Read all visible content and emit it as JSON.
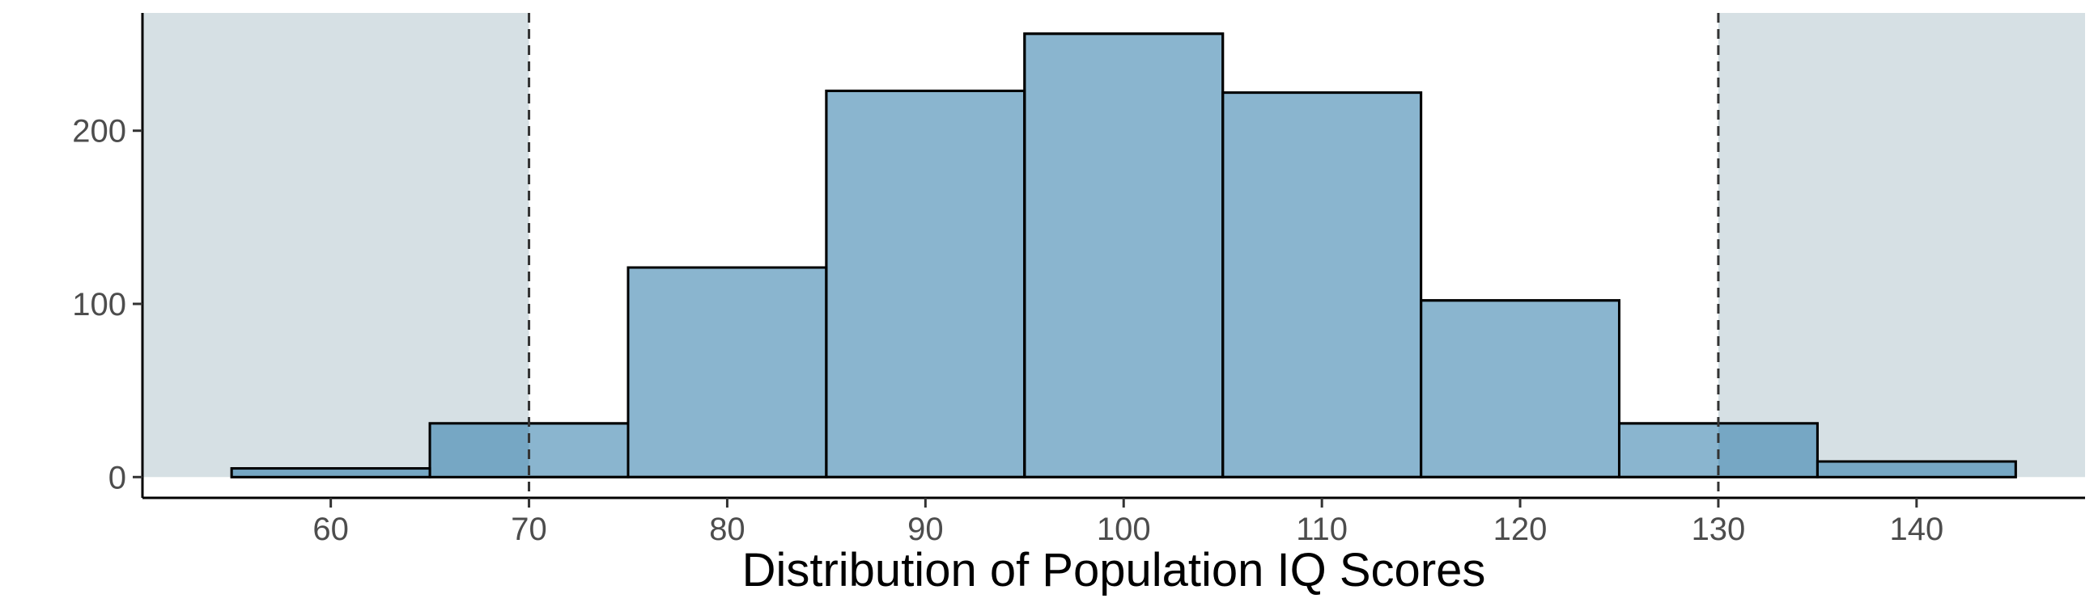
{
  "chart_data": {
    "type": "histogram",
    "title": "",
    "xlabel": "Distribution of Population IQ Scores",
    "ylabel": "",
    "bins": [
      {
        "x0": 55,
        "x1": 65,
        "count": 5
      },
      {
        "x0": 65,
        "x1": 75,
        "count": 31
      },
      {
        "x0": 75,
        "x1": 85,
        "count": 121
      },
      {
        "x0": 85,
        "x1": 95,
        "count": 223
      },
      {
        "x0": 95,
        "x1": 105,
        "count": 256
      },
      {
        "x0": 105,
        "x1": 115,
        "count": 222
      },
      {
        "x0": 115,
        "x1": 125,
        "count": 102
      },
      {
        "x0": 125,
        "x1": 135,
        "count": 31
      },
      {
        "x0": 135,
        "x1": 145,
        "count": 9
      }
    ],
    "xlim": [
      50.5,
      148.5
    ],
    "ylim": [
      -12,
      268
    ],
    "xticks": [
      60,
      70,
      80,
      90,
      100,
      110,
      120,
      130,
      140
    ],
    "yticks": [
      0,
      100,
      200
    ],
    "shaded_regions": [
      {
        "x0": 50.5,
        "x1": 70
      },
      {
        "x0": 130,
        "x1": 148.5
      }
    ],
    "reference_lines": [
      70,
      130
    ],
    "grid": false,
    "colors": {
      "bar_fill": "#8ab5cf",
      "bar_fill_in_shade": "#76a7c4",
      "bar_stroke": "#000000",
      "shade": "#d6e0e4",
      "reference_line": "#333333"
    }
  }
}
